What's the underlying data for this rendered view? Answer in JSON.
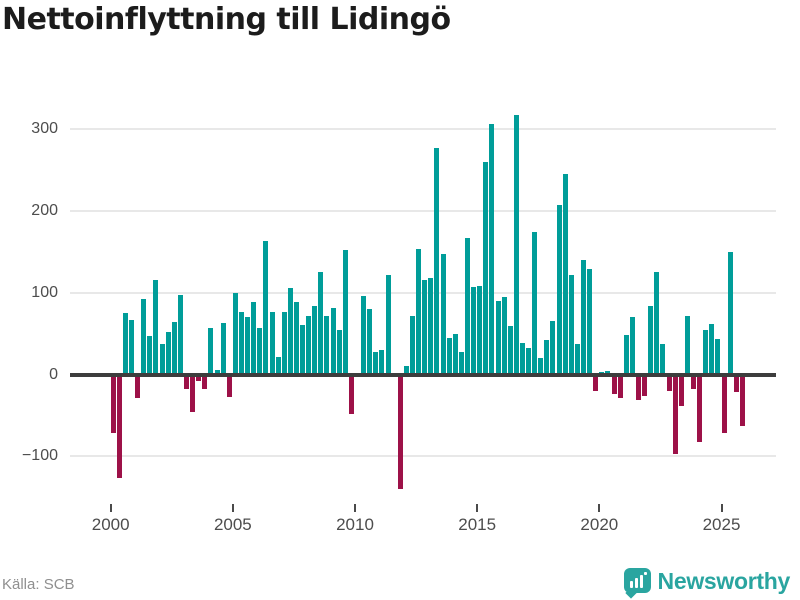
{
  "title": "Nettoinflyttning till Lidingö",
  "source": "Källa: SCB",
  "brand": {
    "name": "Newsworthy",
    "icon": "bar-chart-bubble-icon",
    "color": "#2aa5a0"
  },
  "colors": {
    "positive": "#009D99",
    "negative": "#9D1148",
    "zero_line": "#3d3d3d",
    "gridline": "#e8e8e8",
    "axis_text": "#4d4d4d",
    "title_text": "#1c1c1c",
    "source_text": "#8f8f8f"
  },
  "chart_data": {
    "type": "bar",
    "title": "Nettoinflyttning till Lidingö",
    "xlabel": "",
    "ylabel": "",
    "grid": true,
    "legend": false,
    "ylim": [
      -150,
      340
    ],
    "y_ticks": [
      300,
      200,
      100,
      0,
      -100
    ],
    "y_tick_labels": [
      "300",
      "200",
      "100",
      "0",
      "−100"
    ],
    "x_tick_labels": [
      "2000",
      "2005",
      "2010",
      "2015",
      "2020",
      "2025"
    ],
    "start_year": 2000,
    "period": "quarterly",
    "values": [
      -72,
      -127,
      75,
      67,
      -29,
      92,
      47,
      116,
      37,
      52,
      64,
      97,
      -18,
      -46,
      -8,
      -18,
      57,
      5,
      63,
      -27,
      100,
      77,
      70,
      89,
      57,
      163,
      76,
      21,
      76,
      106,
      89,
      61,
      72,
      84,
      126,
      72,
      81,
      55,
      152,
      -48,
      2,
      96,
      80,
      27,
      30,
      122,
      2,
      -140,
      10,
      71,
      153,
      116,
      118,
      277,
      148,
      45,
      50,
      28,
      167,
      107,
      108,
      260,
      307,
      90,
      95,
      59,
      318,
      39,
      33,
      175,
      20,
      42,
      65,
      208,
      246,
      122,
      37,
      140,
      129,
      -20,
      3,
      4,
      -24,
      -29,
      48,
      70,
      -31,
      -26,
      84,
      126,
      37,
      -20,
      -97,
      -38,
      71,
      -18,
      -83,
      54,
      62,
      43,
      -72,
      150,
      -22,
      -63
    ]
  }
}
